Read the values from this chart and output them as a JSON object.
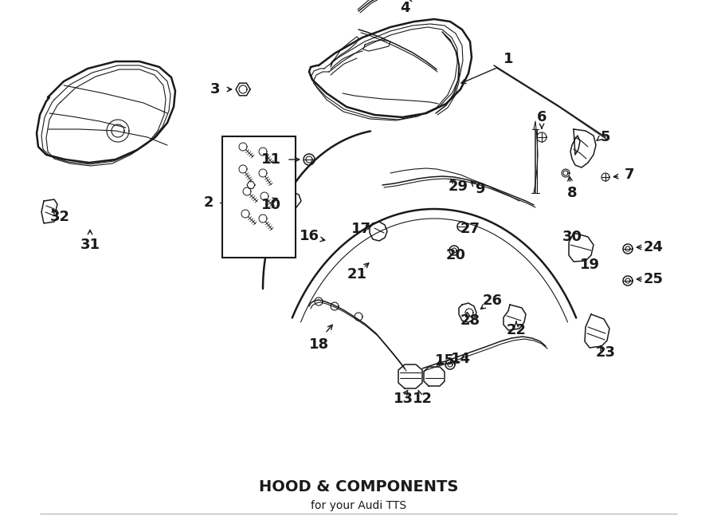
{
  "title": "HOOD & COMPONENTS",
  "subtitle": "for your Audi TTS",
  "bg": "#ffffff",
  "lc": "#1a1a1a",
  "fig_w": 9.0,
  "fig_h": 6.62,
  "dpi": 100
}
